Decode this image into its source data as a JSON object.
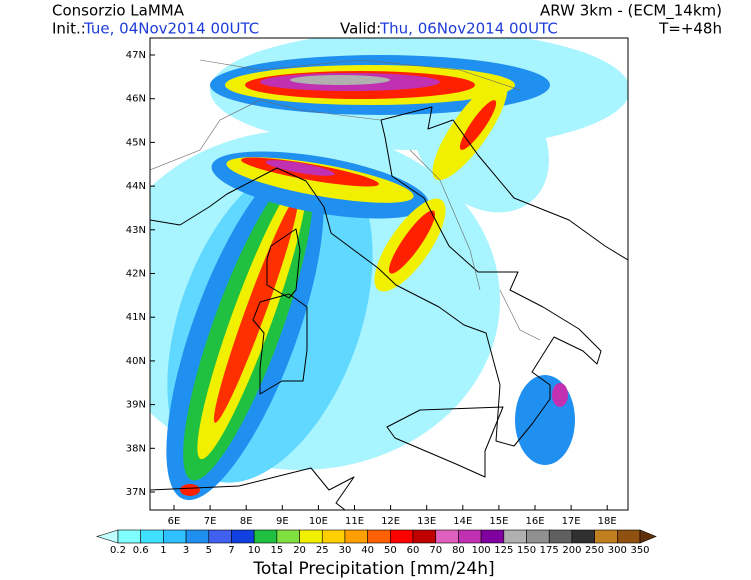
{
  "header": {
    "title": "Consorzio LaMMA",
    "model": "ARW 3km - (ECM_14km)",
    "init_label": "Init.:",
    "init_date": "Tue, 04Nov2014 00UTC",
    "valid_label": "Valid:",
    "valid_date": "Thu, 06Nov2014 00UTC",
    "lead_time": "T=+48h"
  },
  "map": {
    "lat_labels": [
      "47N",
      "46N",
      "45N",
      "44N",
      "43N",
      "42N",
      "41N",
      "40N",
      "39N",
      "38N",
      "37N"
    ],
    "lon_labels": [
      "6E",
      "7E",
      "8E",
      "9E",
      "10E",
      "11E",
      "12E",
      "13E",
      "14E",
      "15E",
      "16E",
      "17E",
      "18E"
    ]
  },
  "colorbar": {
    "title": "Total Precipitation [mm/24h]",
    "labels": [
      0.2,
      0.6,
      1,
      3,
      5,
      7,
      10,
      15,
      20,
      25,
      30,
      40,
      50,
      60,
      70,
      80,
      100,
      125,
      150,
      175,
      200,
      250,
      300,
      350
    ],
    "colors": [
      "#c0ffff",
      "#80ffff",
      "#40e0ff",
      "#30c0ff",
      "#2090f0",
      "#4060f0",
      "#1040e0",
      "#20c040",
      "#80e040",
      "#f0f000",
      "#ffd000",
      "#ffa000",
      "#ff6000",
      "#ff0000",
      "#c00000",
      "#e060c0",
      "#c030b0",
      "#8000a0",
      "#b0b0b0",
      "#909090",
      "#606060",
      "#303030",
      "#c08020",
      "#905010",
      "#603008"
    ]
  }
}
